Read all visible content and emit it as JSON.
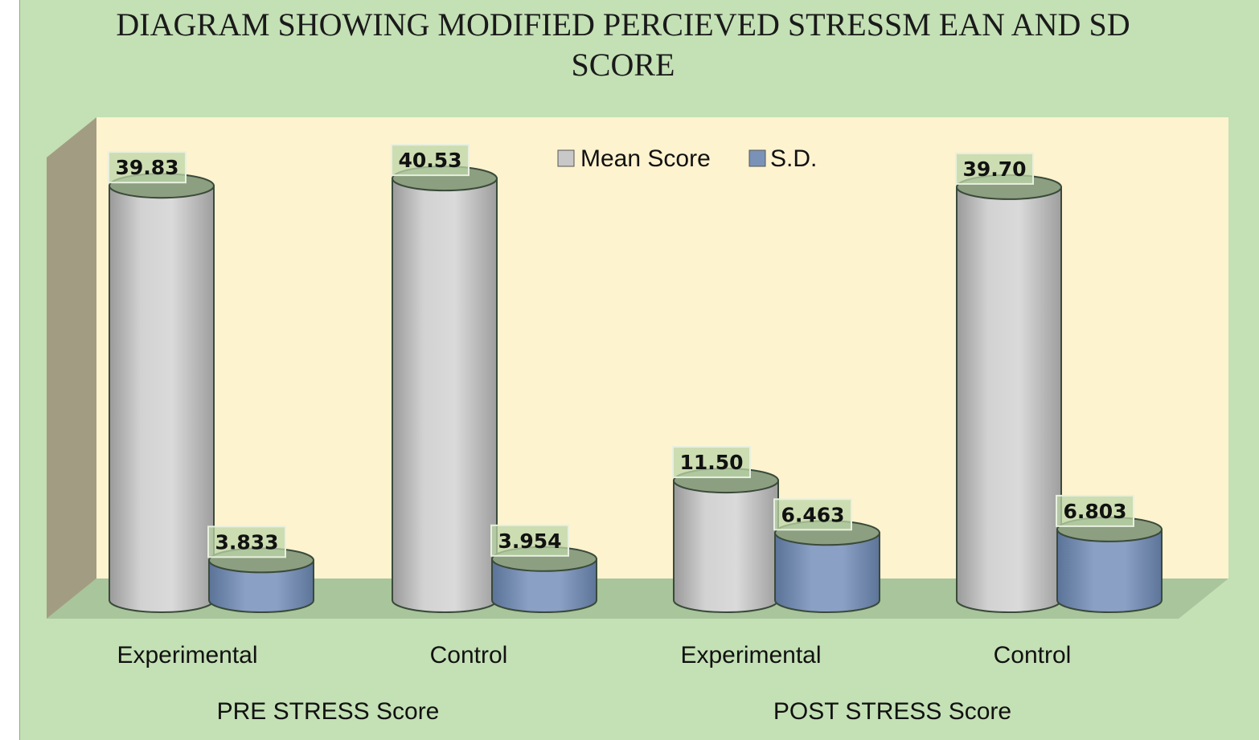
{
  "chart_data": {
    "type": "bar",
    "style": "3d-cylinder",
    "title_lines": [
      "DIAGRAM SHOWING MODIFIED PERCIEVED  STRESSM EAN AND SD",
      "SCORE"
    ],
    "categories": [
      "Experimental",
      "Control",
      "Experimental",
      "Control"
    ],
    "groups": [
      {
        "label": "PRE STRESS  Score",
        "categories": [
          0,
          1
        ]
      },
      {
        "label": "POST STRESS  Score",
        "categories": [
          2,
          3
        ]
      }
    ],
    "series": [
      {
        "name": "Mean Score",
        "values": [
          39.83,
          40.53,
          11.5,
          39.7
        ],
        "labels": [
          "39.83",
          "40.53",
          "11.50",
          "39.70"
        ],
        "color": "#c8c8c8"
      },
      {
        "name": "S.D.",
        "values": [
          3.833,
          3.954,
          6.463,
          6.803
        ],
        "labels": [
          "3.833",
          "3.954",
          "6.463",
          "6.803"
        ],
        "color": "#7a92b8"
      }
    ],
    "ylim": [
      0,
      45
    ],
    "legend_position": "top-center",
    "colors": {
      "background": "#c4e0b5",
      "back_wall": "#fef3cf",
      "side_wall": "#a29d82",
      "floor": "#a8c59b",
      "label_box": "#bcd6a8"
    }
  }
}
